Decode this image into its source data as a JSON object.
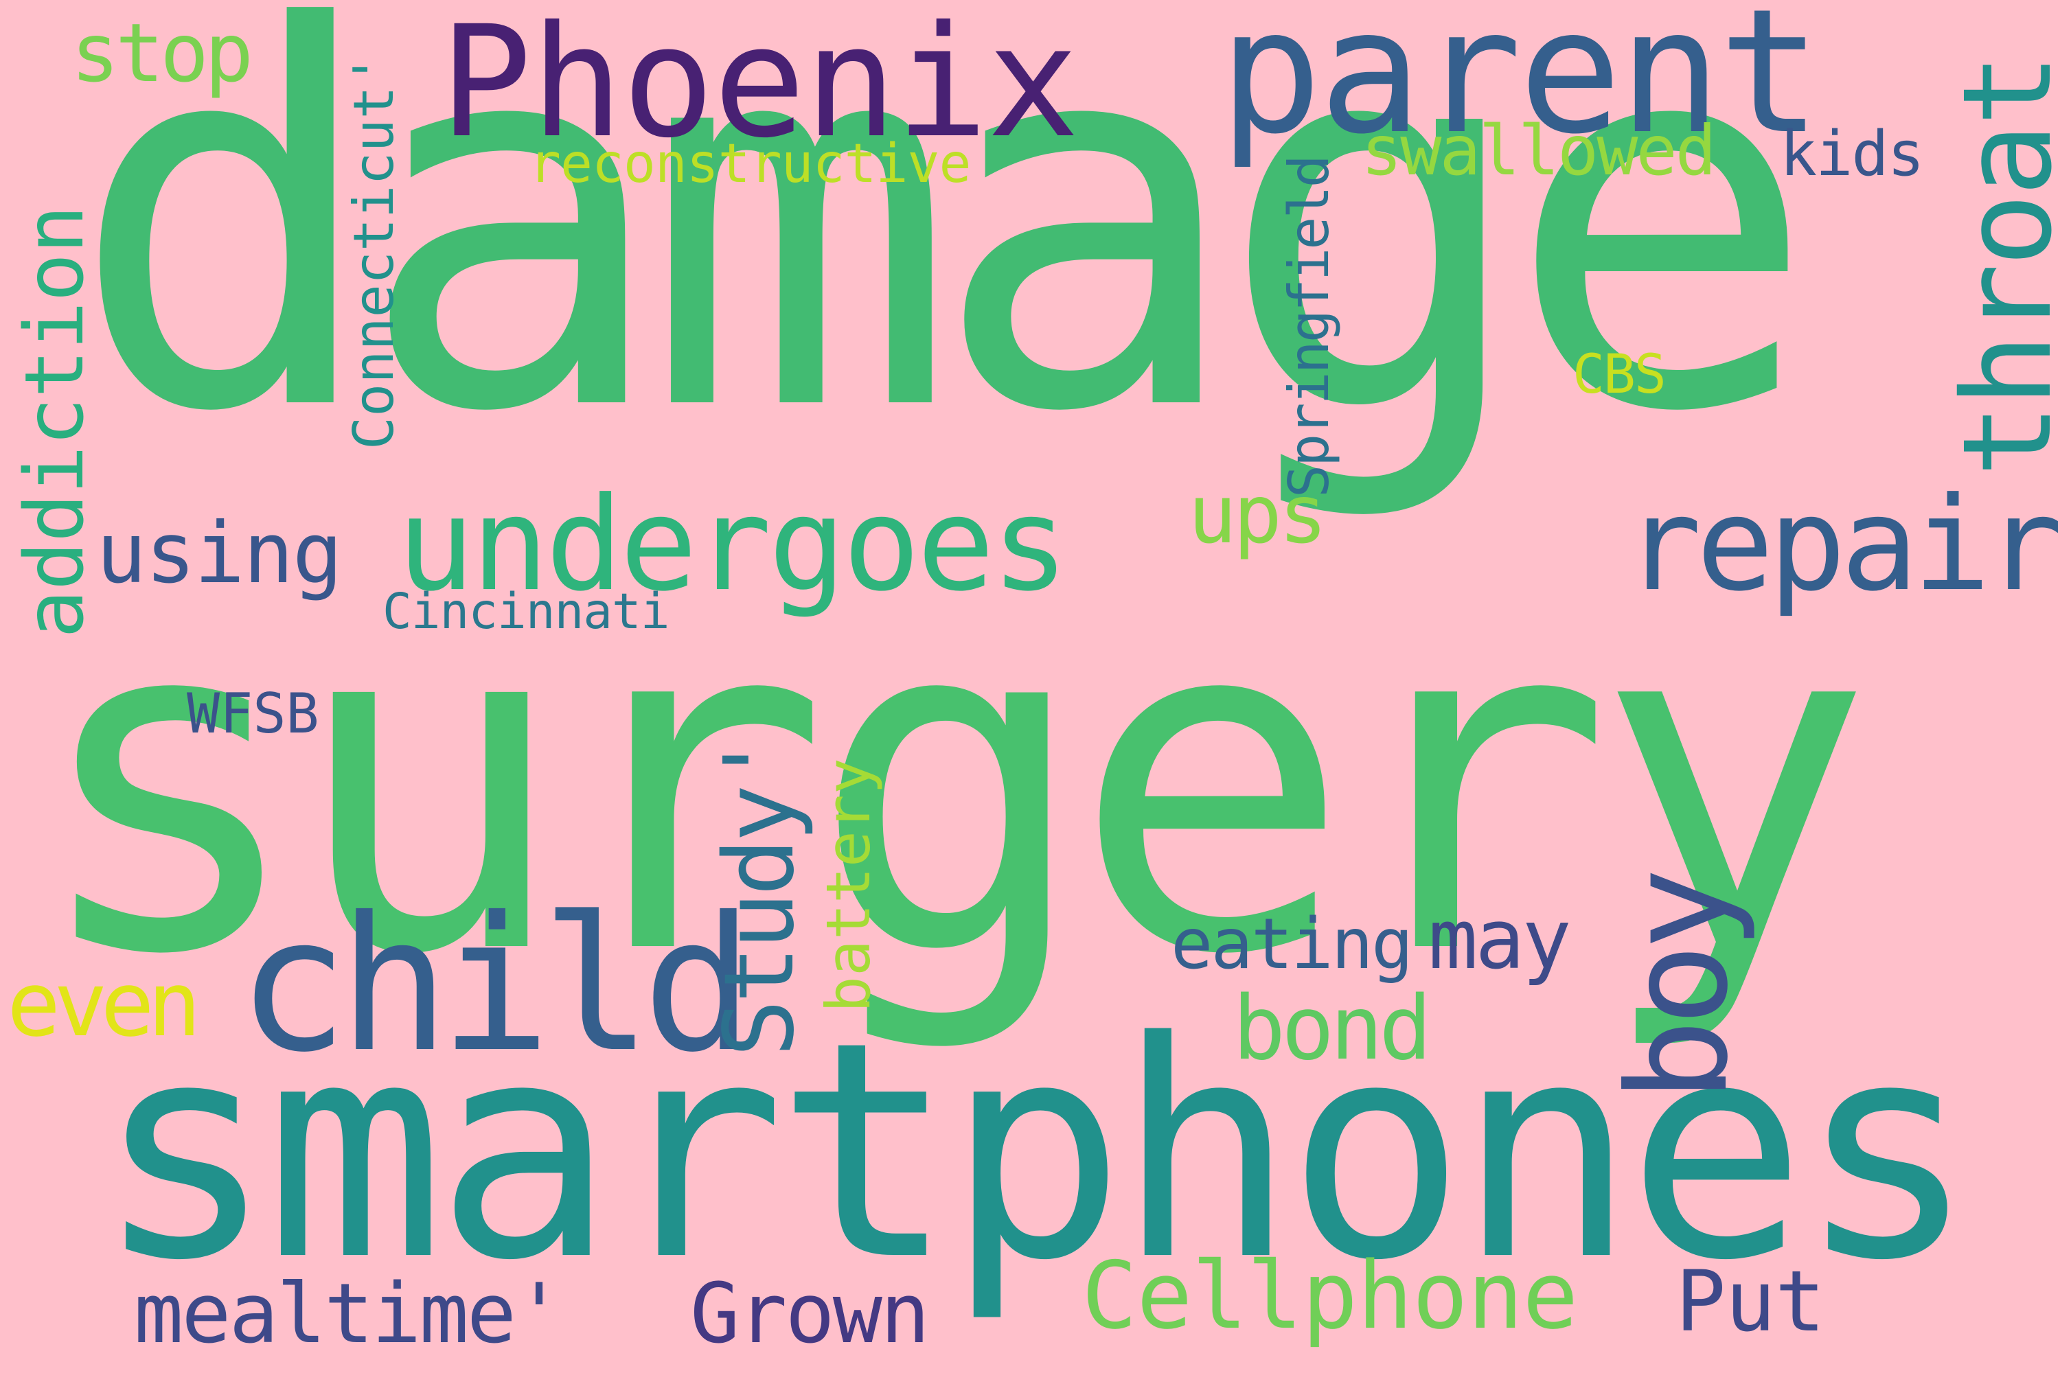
{
  "background": "#ffc0cb",
  "words": [
    {
      "id": "damage",
      "text": "damage",
      "color": "#42bb72"
    },
    {
      "id": "surgery",
      "text": "surgery",
      "color": "#48c16e"
    },
    {
      "id": "smartphones",
      "text": "smartphones",
      "color": "#21918c"
    },
    {
      "id": "phoenix",
      "text": "Phoenix",
      "color": "#482173"
    },
    {
      "id": "parent",
      "text": "parent",
      "color": "#355f8d"
    },
    {
      "id": "child",
      "text": "child",
      "color": "#355f8d"
    },
    {
      "id": "undergoes",
      "text": "undergoes",
      "color": "#2fb47c"
    },
    {
      "id": "repair",
      "text": "repair",
      "color": "#355f8d"
    },
    {
      "id": "throat",
      "text": "throat",
      "color": "#21918c"
    },
    {
      "id": "boy",
      "text": "boy",
      "color": "#3b528b"
    },
    {
      "id": "addiction",
      "text": "addiction",
      "color": "#29af7f"
    },
    {
      "id": "stop",
      "text": "stop",
      "color": "#7ad151"
    },
    {
      "id": "connecticut",
      "text": "Connecticut'",
      "color": "#21918c"
    },
    {
      "id": "reconstructive",
      "text": "reconstructive",
      "color": "#bddf26"
    },
    {
      "id": "swallowed",
      "text": "swallowed",
      "color": "#95d840"
    },
    {
      "id": "kids",
      "text": "kids",
      "color": "#39568c"
    },
    {
      "id": "springfield",
      "text": "Springfield",
      "color": "#2c718e"
    },
    {
      "id": "cbs",
      "text": "CBS",
      "color": "#c8e020"
    },
    {
      "id": "ups",
      "text": "ups",
      "color": "#86d549"
    },
    {
      "id": "using",
      "text": "using",
      "color": "#39568c"
    },
    {
      "id": "cincinnati",
      "text": "Cincinnati",
      "color": "#2a788e"
    },
    {
      "id": "wfsb",
      "text": "WFSB",
      "color": "#3b528b"
    },
    {
      "id": "study",
      "text": "Study'",
      "color": "#2c718e"
    },
    {
      "id": "battery",
      "text": "battery",
      "color": "#a5db36"
    },
    {
      "id": "eating",
      "text": "eating",
      "color": "#355f8d"
    },
    {
      "id": "may",
      "text": "may",
      "color": "#3e4a89"
    },
    {
      "id": "even",
      "text": "even",
      "color": "#e2e418"
    },
    {
      "id": "bond",
      "text": "bond",
      "color": "#5ec962"
    },
    {
      "id": "cellphone",
      "text": "Cellphone",
      "color": "#70cf57"
    },
    {
      "id": "put",
      "text": "Put",
      "color": "#3e4989"
    },
    {
      "id": "mealtime",
      "text": "mealtime'",
      "color": "#3e4989"
    },
    {
      "id": "grown",
      "text": "Grown",
      "color": "#443983"
    }
  ]
}
